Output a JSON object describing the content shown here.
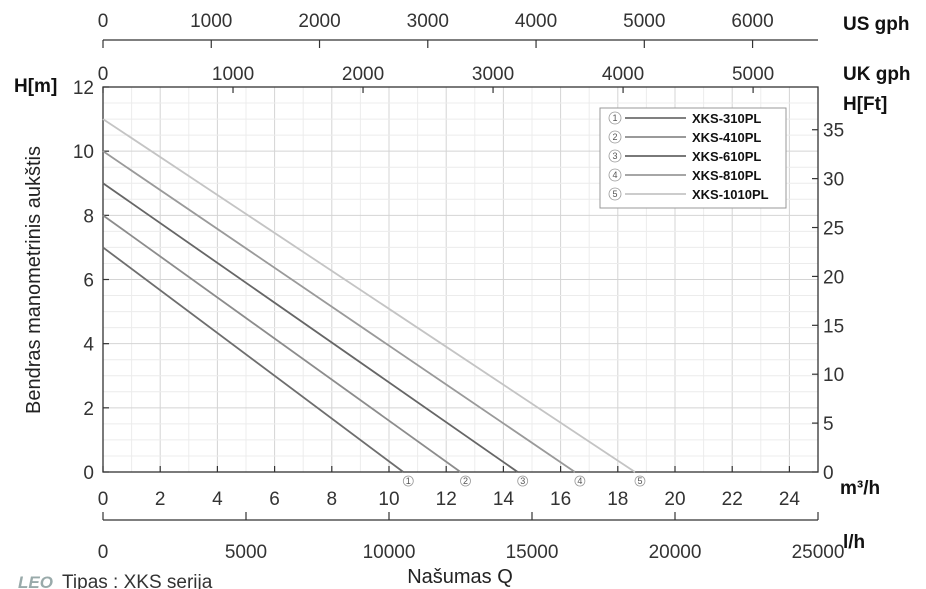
{
  "chart_data": {
    "type": "line",
    "ylabel": "Bendras manometrinis aukštis",
    "xlabel": "Našumas Q",
    "y_left_unit": "H[m]",
    "y_right_unit": "H[Ft]",
    "x_unit_m3h": "m³/h",
    "x_unit_lh": "l/h",
    "x_unit_usgph": "US gph",
    "x_unit_ukgph": "UK gph",
    "xlim": [
      0,
      25
    ],
    "ylim": [
      0,
      12
    ],
    "grid": true,
    "legend_position": "top-right",
    "x_ticks_m3h": [
      "0",
      "2",
      "4",
      "6",
      "8",
      "10",
      "12",
      "14",
      "16",
      "18",
      "20",
      "22",
      "24"
    ],
    "x_ticks_lh": [
      "0",
      "5000",
      "10000",
      "15000",
      "20000",
      "25000"
    ],
    "x_ticks_usgph": [
      "0",
      "1000",
      "2000",
      "3000",
      "4000",
      "5000",
      "6000"
    ],
    "x_ticks_ukgph": [
      "0",
      "1000",
      "2000",
      "3000",
      "4000",
      "5000"
    ],
    "y_ticks_m": [
      "0",
      "2",
      "4",
      "6",
      "8",
      "10",
      "12"
    ],
    "y_ticks_ft": [
      "0",
      "5",
      "10",
      "15",
      "20",
      "25",
      "30",
      "35"
    ],
    "series": [
      {
        "name": "XKS-310PL",
        "marker": "1",
        "color": "#6e6e6e",
        "x": [
          0,
          10.5
        ],
        "y": [
          7,
          0
        ]
      },
      {
        "name": "XKS-410PL",
        "marker": "2",
        "color": "#8c8c8c",
        "x": [
          0,
          12.5
        ],
        "y": [
          8,
          0
        ]
      },
      {
        "name": "XKS-610PL",
        "marker": "3",
        "color": "#666666",
        "x": [
          0,
          14.5
        ],
        "y": [
          9,
          0
        ]
      },
      {
        "name": "XKS-810PL",
        "marker": "4",
        "color": "#9a9a9a",
        "x": [
          0,
          16.5
        ],
        "y": [
          10,
          0
        ]
      },
      {
        "name": "XKS-1010PL",
        "marker": "5",
        "color": "#c4c4c4",
        "x": [
          0,
          18.6
        ],
        "y": [
          11,
          0
        ]
      }
    ]
  },
  "footer": {
    "logo": "LEO",
    "text": "Tipas : XKS serija"
  }
}
